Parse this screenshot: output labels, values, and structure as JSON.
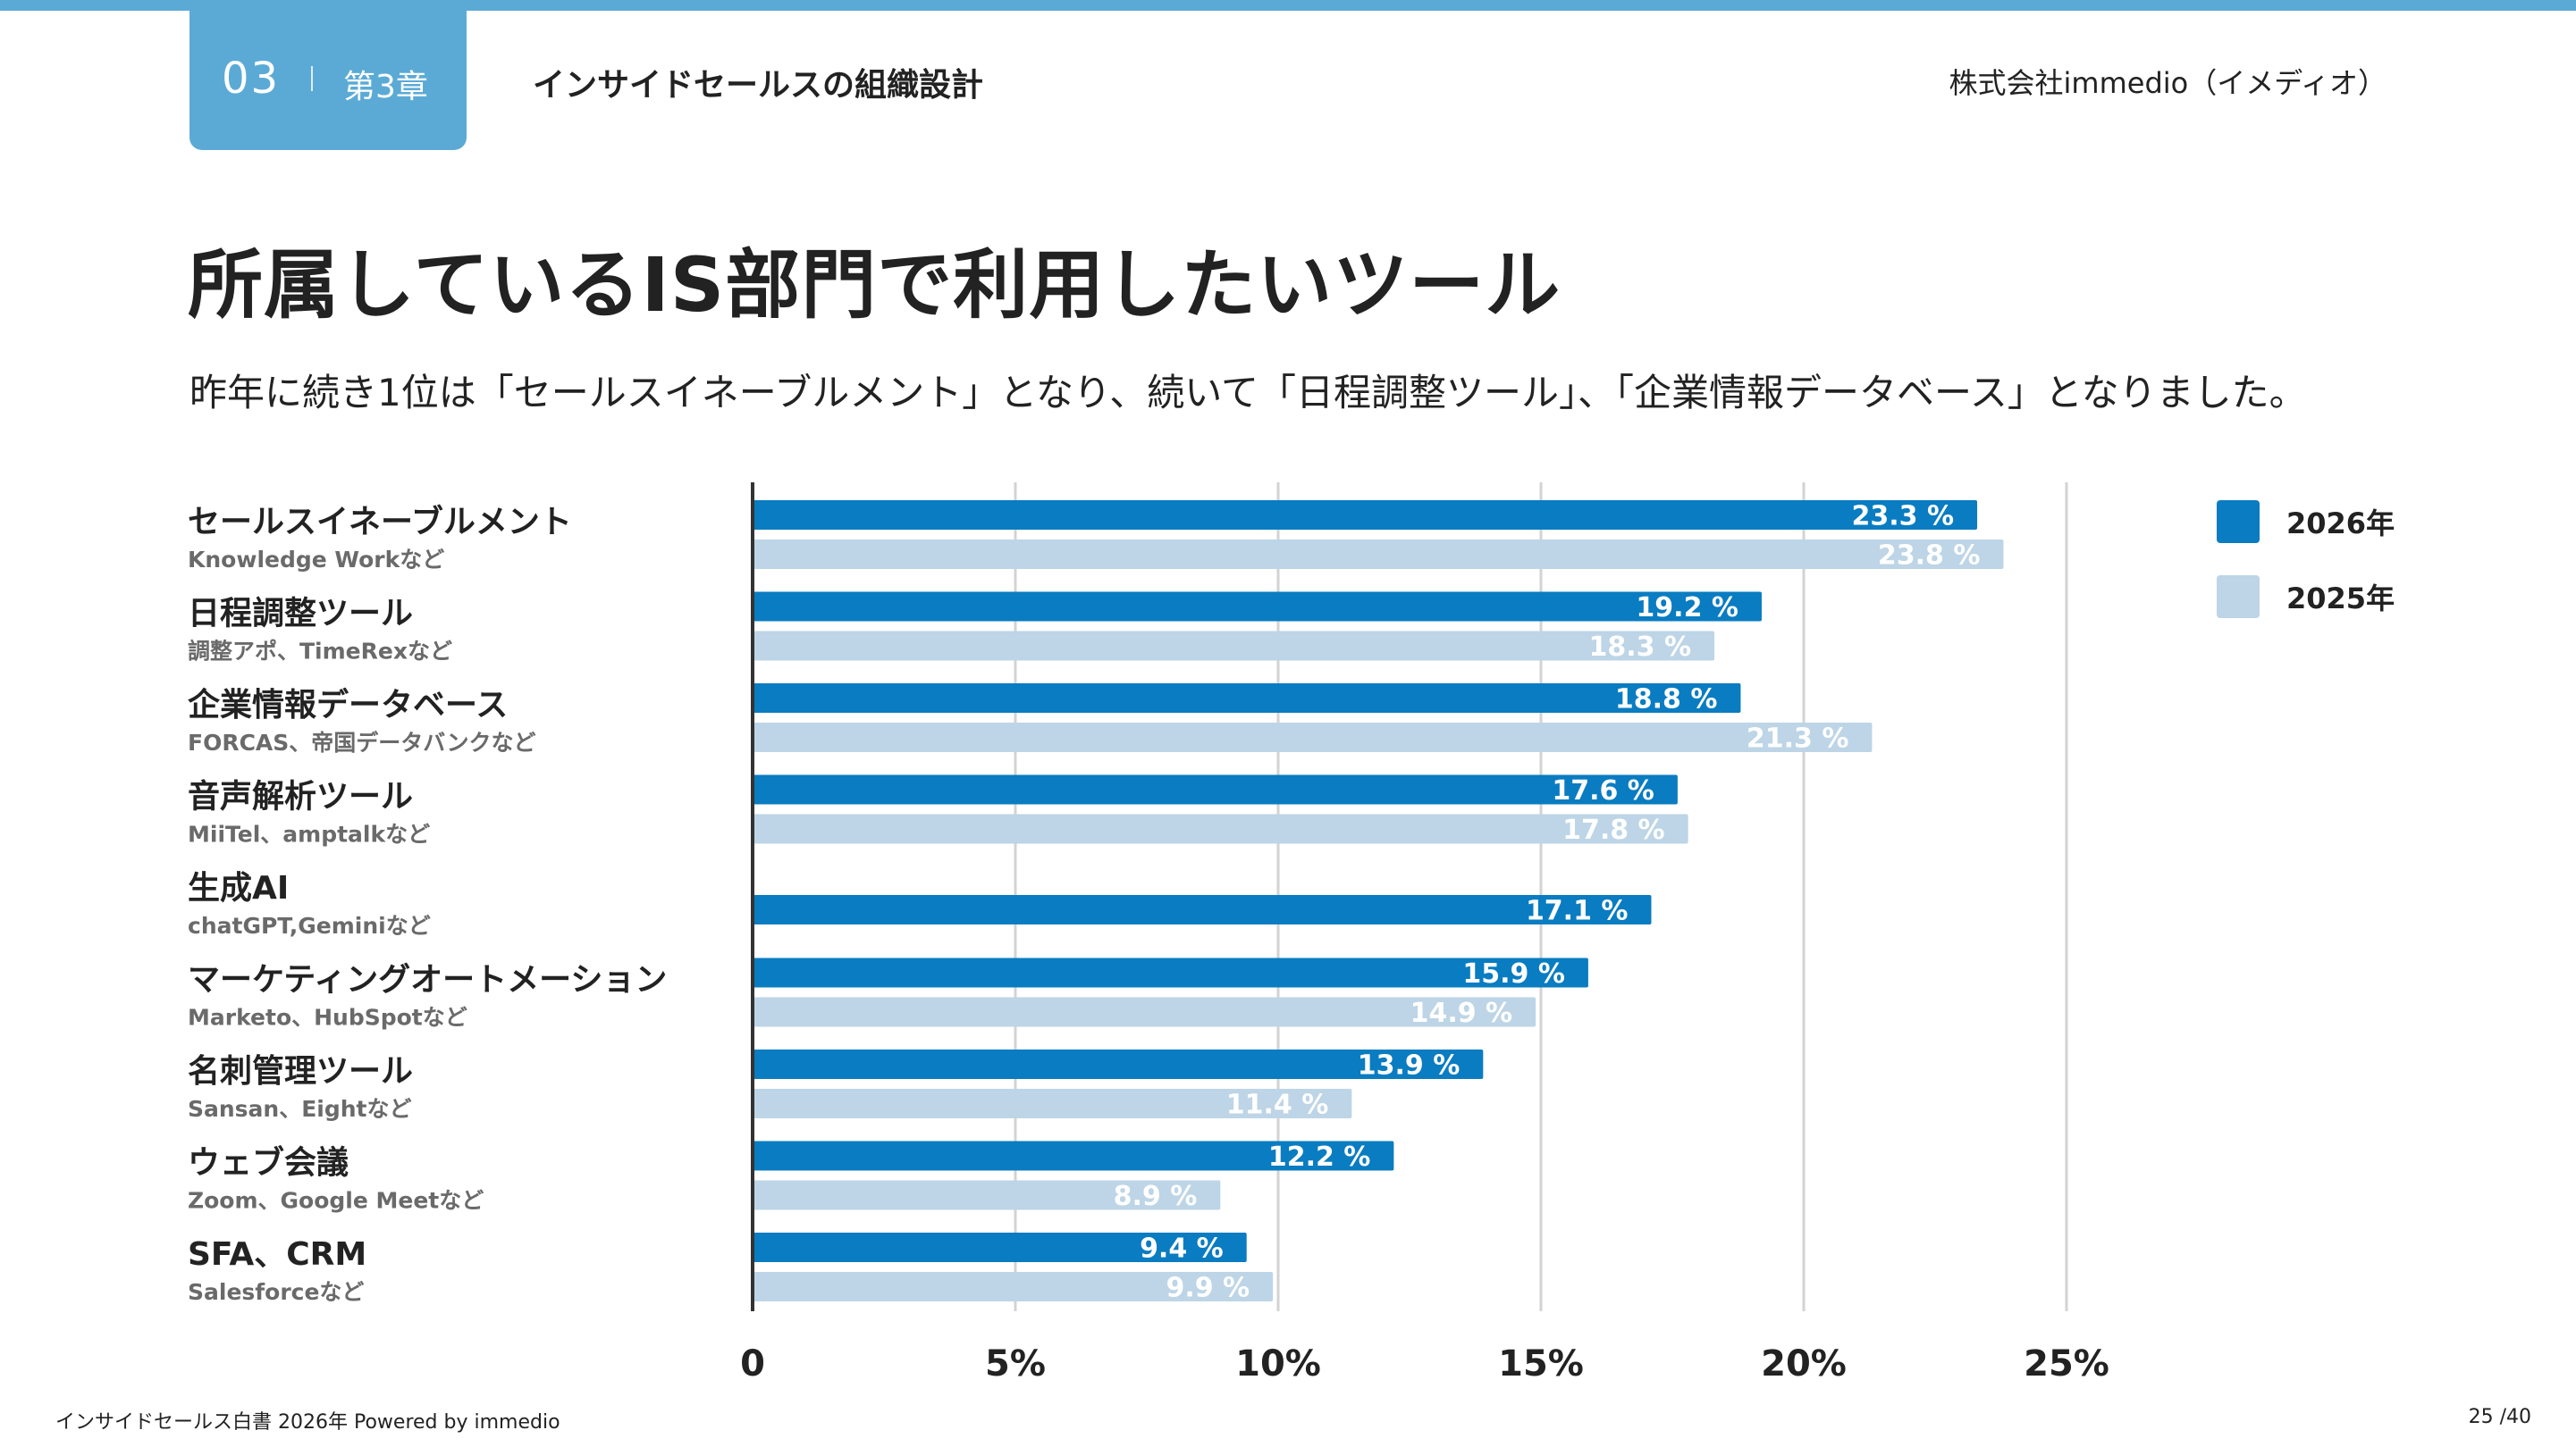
{
  "header": {
    "chapter_number": "03",
    "chapter_label": "第3章",
    "section_title": "インサイドセールスの組織設計",
    "company": "株式会社immedio（イメディオ）"
  },
  "page": {
    "title": "所属しているIS部門で利用したいツール",
    "subtitle": "昨年に続き1位は「セールスイネーブルメント」となり、続いて「日程調整ツール」、「企業情報データベース」となりました。"
  },
  "colors": {
    "accent": "#5baad6",
    "series_2026": "#0a7cc1",
    "series_2025": "#bdd5e6"
  },
  "chart_data": {
    "type": "bar",
    "orientation": "horizontal",
    "categories": [
      "セールスイネーブルメント",
      "日程調整ツール",
      "企業情報データベース",
      "音声解析ツール",
      "生成AI",
      "マーケティングオートメーション",
      "名刺管理ツール",
      "ウェブ会議",
      "SFA、CRM"
    ],
    "category_examples": [
      "Knowledge Workなど",
      "調整アポ、TimeRexなど",
      "FORCAS、帝国データバンクなど",
      "MiiTel、amptalkなど",
      "chatGPT,Geminiなど",
      "Marketo、HubSpotなど",
      "Sansan、Eightなど",
      "Zoom、Google Meetなど",
      "Salesforceなど"
    ],
    "series": [
      {
        "name": "2026年",
        "values": [
          23.3,
          19.2,
          18.8,
          17.6,
          17.1,
          15.9,
          13.9,
          12.2,
          9.4
        ],
        "labels": [
          "23.3 %",
          "19.2 %",
          "18.8 %",
          "17.6 %",
          "17.1 %",
          "15.9 %",
          "13.9 %",
          "12.2 %",
          "9.4 %"
        ]
      },
      {
        "name": "2025年",
        "values": [
          23.8,
          18.3,
          21.3,
          17.8,
          null,
          14.9,
          11.4,
          8.9,
          9.9
        ],
        "labels": [
          "23.8 %",
          "18.3 %",
          "21.3 %",
          "17.8 %",
          null,
          "14.9 %",
          "11.4 %",
          "8.9 %",
          "9.9 %"
        ]
      }
    ],
    "x_ticks": [
      0,
      5,
      10,
      15,
      20,
      25
    ],
    "x_tick_labels": [
      "0",
      "5%",
      "10%",
      "15%",
      "20%",
      "25%"
    ],
    "xlim": [
      0,
      25
    ],
    "grid": true,
    "legend_position": "top-right"
  },
  "footer": {
    "left": "インサイドセールス白書 2026年 Powered by immedio",
    "page_number": "25 /40"
  }
}
